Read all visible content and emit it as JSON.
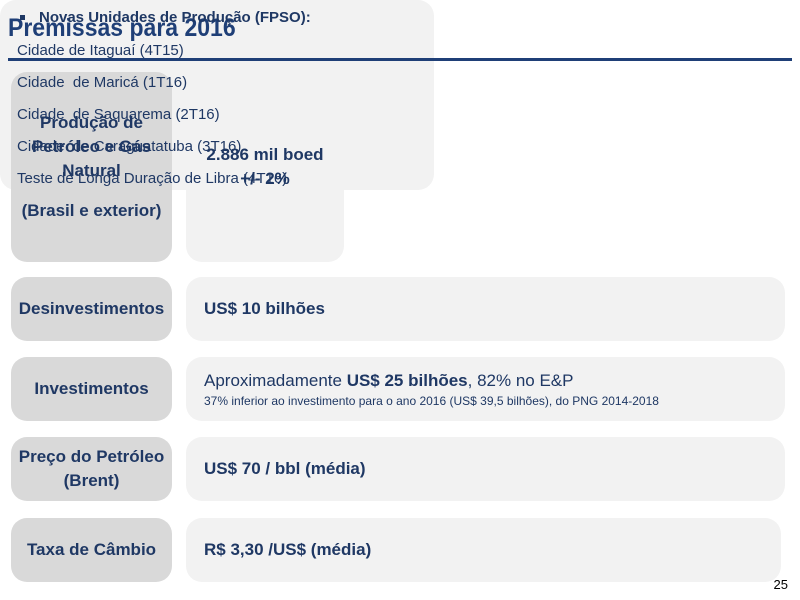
{
  "title": "Premissas para 2016",
  "production": {
    "label_lines": [
      "Produção de",
      "Petróleo e Gás",
      "Natural",
      "",
      "(Brasil e exterior)"
    ],
    "value_lines": [
      "2.886 mil boed",
      "+/- 2%"
    ],
    "fpso_header": "Novas Unidades de Produção (FPSO):",
    "fpso_items": [
      "Cidade de Itaguaí (4T15)",
      "Cidade  de Maricá (1T16)",
      "Cidade  de Saquarema (2T16)",
      "Cidade  de Caraguatatuba (3T16)",
      "Teste de Longa Duração de Libra (4T16)"
    ]
  },
  "divestments": {
    "label": "Desinvestimentos",
    "value": "US$ 10 bilhões"
  },
  "investments": {
    "label": "Investimentos",
    "value_prefix": "Aproximadamente ",
    "value_bold": "US$ 25 bilhões",
    "value_suffix": ", 82% no E&P",
    "note": "37% inferior ao investimento para o ano 2016 (US$ 39,5 bilhões), do PNG 2014-2018"
  },
  "oil_price": {
    "label_lines": [
      "Preço do Petróleo",
      "(Brent)"
    ],
    "value": "US$ 70 / bbl (média)"
  },
  "exchange_rate": {
    "label": "Taxa de Câmbio",
    "value": "R$ 3,30 /US$ (média)"
  },
  "page_number": "25"
}
